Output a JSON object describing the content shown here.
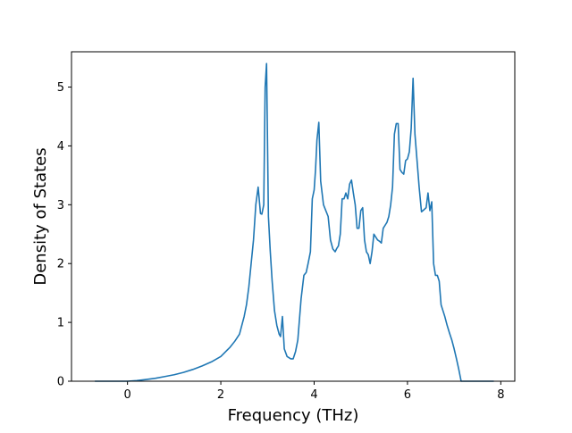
{
  "chart_data": {
    "type": "line",
    "title": "",
    "xlabel": "Frequency (THz)",
    "ylabel": "Density of States",
    "xlim": [
      -1.2,
      8.3
    ],
    "ylim": [
      0,
      5.6
    ],
    "xticks": [
      0,
      2,
      4,
      6,
      8
    ],
    "yticks": [
      0,
      1,
      2,
      3,
      4,
      5
    ],
    "grid": false,
    "legend": "none",
    "colors": {
      "line": "#1f77b4",
      "axes": "#000000",
      "background": "#ffffff"
    },
    "series": [
      {
        "x": [
          -0.7,
          -0.4,
          0.0,
          0.2,
          0.4,
          0.6,
          0.8,
          1.0,
          1.2,
          1.4,
          1.6,
          1.8,
          2.0,
          2.1,
          2.2,
          2.3,
          2.4,
          2.45,
          2.5,
          2.55,
          2.6,
          2.65,
          2.7,
          2.75,
          2.8,
          2.85,
          2.88,
          2.92,
          2.95,
          2.98,
          3.02,
          3.06,
          3.1,
          3.15,
          3.2,
          3.25,
          3.28,
          3.32,
          3.36,
          3.42,
          3.5,
          3.55,
          3.6,
          3.65,
          3.68,
          3.72,
          3.78,
          3.83,
          3.87,
          3.92,
          3.96,
          4.0,
          4.03,
          4.06,
          4.1,
          4.14,
          4.2,
          4.25,
          4.3,
          4.35,
          4.4,
          4.45,
          4.48,
          4.52,
          4.56,
          4.6,
          4.64,
          4.68,
          4.72,
          4.76,
          4.8,
          4.84,
          4.88,
          4.92,
          4.96,
          5.0,
          5.04,
          5.08,
          5.12,
          5.16,
          5.2,
          5.24,
          5.28,
          5.32,
          5.36,
          5.4,
          5.44,
          5.48,
          5.52,
          5.56,
          5.6,
          5.64,
          5.68,
          5.72,
          5.76,
          5.8,
          5.84,
          5.88,
          5.92,
          5.96,
          6.0,
          6.04,
          6.08,
          6.12,
          6.16,
          6.2,
          6.25,
          6.3,
          6.36,
          6.4,
          6.44,
          6.48,
          6.52,
          6.56,
          6.6,
          6.64,
          6.68,
          6.72,
          6.76,
          6.8,
          6.85,
          6.9,
          6.95,
          7.0,
          7.05,
          7.1,
          7.15,
          7.3,
          7.6,
          7.85
        ],
        "y": [
          0.0,
          0.0,
          0.0,
          0.01,
          0.03,
          0.05,
          0.08,
          0.11,
          0.15,
          0.2,
          0.26,
          0.33,
          0.42,
          0.5,
          0.58,
          0.68,
          0.8,
          0.95,
          1.1,
          1.3,
          1.6,
          2.0,
          2.4,
          3.0,
          3.3,
          2.85,
          2.84,
          3.0,
          5.0,
          5.4,
          2.8,
          2.2,
          1.7,
          1.2,
          0.95,
          0.8,
          0.76,
          1.1,
          0.55,
          0.42,
          0.38,
          0.38,
          0.5,
          0.7,
          1.0,
          1.4,
          1.8,
          1.85,
          2.0,
          2.2,
          3.1,
          3.25,
          3.6,
          4.1,
          4.4,
          3.4,
          3.0,
          2.9,
          2.8,
          2.4,
          2.25,
          2.2,
          2.25,
          2.3,
          2.5,
          3.1,
          3.1,
          3.2,
          3.1,
          3.35,
          3.42,
          3.2,
          3.0,
          2.6,
          2.6,
          2.9,
          2.95,
          2.4,
          2.2,
          2.15,
          2.0,
          2.2,
          2.5,
          2.45,
          2.4,
          2.38,
          2.35,
          2.6,
          2.65,
          2.7,
          2.8,
          3.0,
          3.3,
          4.2,
          4.38,
          4.38,
          3.6,
          3.55,
          3.52,
          3.75,
          3.78,
          3.9,
          4.3,
          5.15,
          4.2,
          3.8,
          3.3,
          2.88,
          2.92,
          2.95,
          3.2,
          2.9,
          3.05,
          2.0,
          1.8,
          1.8,
          1.7,
          1.3,
          1.2,
          1.1,
          0.95,
          0.82,
          0.7,
          0.55,
          0.38,
          0.2,
          0.0,
          0.0,
          0.0,
          0.0
        ]
      }
    ]
  }
}
